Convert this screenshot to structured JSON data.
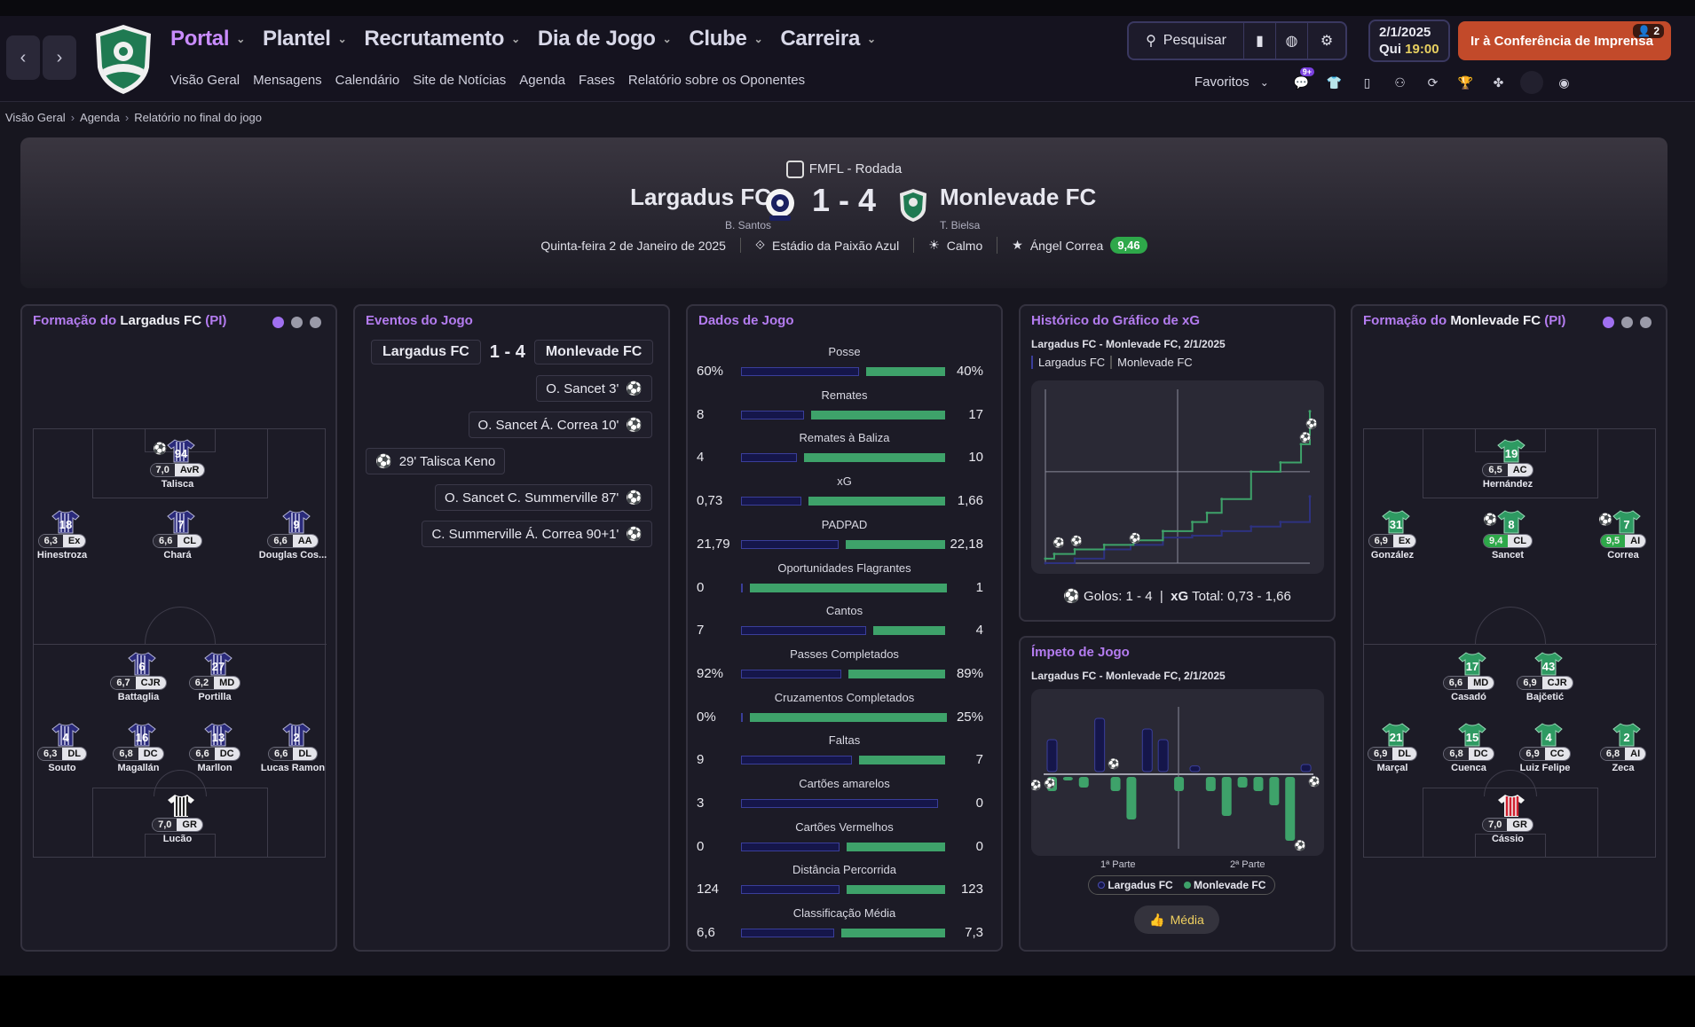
{
  "topbar": {
    "nav": [
      {
        "label": "Portal",
        "active": true
      },
      {
        "label": "Plantel"
      },
      {
        "label": "Recrutamento"
      },
      {
        "label": "Dia de Jogo"
      },
      {
        "label": "Clube"
      },
      {
        "label": "Carreira"
      }
    ],
    "subnav": [
      "Visão Geral",
      "Mensagens",
      "Calendário",
      "Site de Notícias",
      "Agenda",
      "Fases",
      "Relatório sobre os Oponentes"
    ],
    "search_label": "Pesquisar",
    "date": "2/1/2025",
    "day": "Qui",
    "time": "19:00",
    "press_button": "Ir à Conferência de Imprensa",
    "press_badge": "2",
    "favorites_label": "Favoritos",
    "fav_badge": "9+"
  },
  "breadcrumb": [
    "Visão Geral",
    "Agenda",
    "Relatório no final do jogo"
  ],
  "match": {
    "competition": "FMFL - Rodada",
    "home": "Largadus FC",
    "home_manager": "B. Santos",
    "away": "Monlevade FC",
    "away_manager": "T. Bielsa",
    "score": "1 - 4",
    "date": "Quinta-feira 2 de Janeiro de 2025",
    "stadium": "Estádio da Paixão Azul",
    "weather": "Calmo",
    "potm": "Ángel Correa",
    "potm_rating": "9,46"
  },
  "home_lineup": {
    "title_prefix": "Formação do",
    "team": "Largadus FC",
    "suffix": "(PI)",
    "players": [
      {
        "num": "94",
        "rating": "7,0",
        "pos": "AvR",
        "name": "Talisca",
        "goal": true
      },
      {
        "num": "18",
        "rating": "6,3",
        "pos": "Ex",
        "name": "Hinestroza"
      },
      {
        "num": "7",
        "rating": "6,6",
        "pos": "CL",
        "name": "Chará"
      },
      {
        "num": "9",
        "rating": "6,6",
        "pos": "AA",
        "name": "Douglas Cos..."
      },
      {
        "num": "6",
        "rating": "6,7",
        "pos": "CJR",
        "name": "Battaglia"
      },
      {
        "num": "27",
        "rating": "6,2",
        "pos": "MD",
        "name": "Portilla"
      },
      {
        "num": "4",
        "rating": "6,3",
        "pos": "DL",
        "name": "Souto"
      },
      {
        "num": "16",
        "rating": "6,8",
        "pos": "DC",
        "name": "Magallán"
      },
      {
        "num": "13",
        "rating": "6,6",
        "pos": "DC",
        "name": "Marllon"
      },
      {
        "num": "2",
        "rating": "6,6",
        "pos": "DL",
        "name": "Lucas Ramon"
      },
      {
        "num": "",
        "rating": "7,0",
        "pos": "GR",
        "name": "Lucão"
      }
    ]
  },
  "away_lineup": {
    "title_prefix": "Formação do",
    "team": "Monlevade FC",
    "suffix": "(PI)",
    "players": [
      {
        "num": "19",
        "rating": "6,5",
        "pos": "AC",
        "name": "Hernández"
      },
      {
        "num": "31",
        "rating": "6,9",
        "pos": "Ex",
        "name": "González"
      },
      {
        "num": "8",
        "rating": "9,4",
        "pos": "CL",
        "name": "Sancet",
        "goal": true,
        "good": true
      },
      {
        "num": "7",
        "rating": "9,5",
        "pos": "AI",
        "name": "Correa",
        "goal": true,
        "good": true
      },
      {
        "num": "17",
        "rating": "6,6",
        "pos": "MD",
        "name": "Casadó"
      },
      {
        "num": "43",
        "rating": "6,9",
        "pos": "CJR",
        "name": "Bajčetić"
      },
      {
        "num": "21",
        "rating": "6,9",
        "pos": "DL",
        "name": "Marçal"
      },
      {
        "num": "15",
        "rating": "6,8",
        "pos": "DC",
        "name": "Cuenca"
      },
      {
        "num": "4",
        "rating": "6,9",
        "pos": "CC",
        "name": "Luiz Felipe"
      },
      {
        "num": "2",
        "rating": "6,8",
        "pos": "AI",
        "name": "Zeca"
      },
      {
        "num": "",
        "rating": "7,0",
        "pos": "GR",
        "name": "Cássio"
      }
    ]
  },
  "events": {
    "title": "Eventos do Jogo",
    "home": "Largadus FC",
    "score": "1 - 4",
    "away": "Monlevade FC",
    "items": [
      {
        "side": "away",
        "text": "O. Sancet 3'"
      },
      {
        "side": "away",
        "text": "O. Sancet  Á. Correa 10'"
      },
      {
        "side": "home",
        "text": "29'  Talisca Keno"
      },
      {
        "side": "away",
        "text": "O. Sancet  C. Summerville 87'"
      },
      {
        "side": "away",
        "text": "C. Summerville  Á. Correa 90+1'"
      }
    ]
  },
  "stats": {
    "title": "Dados de Jogo",
    "items": [
      {
        "label": "Posse",
        "home": "60%",
        "away": "40%",
        "h": 60,
        "a": 40
      },
      {
        "label": "Remates",
        "home": "8",
        "away": "17",
        "h": 8,
        "a": 17
      },
      {
        "label": "Remates à Baliza",
        "home": "4",
        "away": "10",
        "h": 4,
        "a": 10
      },
      {
        "label": "xG",
        "home": "0,73",
        "away": "1,66",
        "h": 0.73,
        "a": 1.66
      },
      {
        "label": "PADPAD",
        "home": "21,79",
        "away": "22,18",
        "h": 21.79,
        "a": 22.18
      },
      {
        "label": "Oportunidades Flagrantes",
        "home": "0",
        "away": "1",
        "h": 0,
        "a": 1
      },
      {
        "label": "Cantos",
        "home": "7",
        "away": "4",
        "h": 7,
        "a": 4
      },
      {
        "label": "Passes Completados",
        "home": "92%",
        "away": "89%",
        "h": 92,
        "a": 89
      },
      {
        "label": "Cruzamentos Completados",
        "home": "0%",
        "away": "25%",
        "h": 0,
        "a": 25
      },
      {
        "label": "Faltas",
        "home": "9",
        "away": "7",
        "h": 9,
        "a": 7
      },
      {
        "label": "Cartões amarelos",
        "home": "3",
        "away": "0",
        "h": 3,
        "a": 0
      },
      {
        "label": "Cartões Vermelhos",
        "home": "0",
        "away": "0",
        "h": 0,
        "a": 0
      },
      {
        "label": "Distância Percorrida",
        "home": "124",
        "away": "123",
        "h": 124,
        "a": 123
      },
      {
        "label": "Classificação Média",
        "home": "6,6",
        "away": "7,3",
        "h": 6.6,
        "a": 7.3
      }
    ]
  },
  "xg": {
    "title": "Histórico do Gráfico de xG",
    "subtitle": "Largadus FC - Monlevade FC, 2/1/2025",
    "legend": [
      "Largadus FC",
      "Monlevade FC"
    ],
    "goals_label": "Golos: 1 - 4",
    "total_label": "Total: 0,73  -  1,66",
    "xg_label": "xG"
  },
  "momentum": {
    "title": "Ímpeto de Jogo",
    "subtitle": "Largadus FC - Monlevade FC, 2/1/2025",
    "half1": "1ª Parte",
    "half2": "2ª Parte",
    "legend": [
      "Largadus FC",
      "Monlevade FC"
    ],
    "media": "Média"
  },
  "chart_data": [
    {
      "type": "line",
      "title": "Histórico do Gráfico de xG",
      "series": [
        {
          "name": "Largadus FC",
          "x": [
            0,
            10,
            20,
            29,
            40,
            50,
            60,
            70,
            80,
            90
          ],
          "values": [
            0.0,
            0.05,
            0.15,
            0.2,
            0.28,
            0.3,
            0.35,
            0.4,
            0.45,
            0.73
          ]
        },
        {
          "name": "Monlevade FC",
          "x": [
            0,
            3,
            10,
            20,
            30,
            40,
            50,
            55,
            60,
            70,
            80,
            87,
            90
          ],
          "values": [
            0.05,
            0.1,
            0.15,
            0.2,
            0.25,
            0.35,
            0.45,
            0.55,
            0.7,
            1.0,
            1.1,
            1.3,
            1.66
          ]
        }
      ]
    },
    {
      "type": "bar",
      "title": "Ímpeto de Jogo",
      "series": [
        {
          "name": "Largadus FC",
          "values": [
            0.45,
            0,
            0,
            0.75,
            0,
            0,
            0.6,
            0.45,
            0,
            0.08,
            0,
            0,
            0,
            0,
            0,
            0,
            0.1
          ]
        },
        {
          "name": "Monlevade FC",
          "values": [
            0.2,
            0.05,
            0.15,
            0,
            0.2,
            0.6,
            0,
            0,
            0.2,
            0,
            0.2,
            0.55,
            0.15,
            0.2,
            0.4,
            0.9,
            0
          ]
        }
      ]
    }
  ]
}
